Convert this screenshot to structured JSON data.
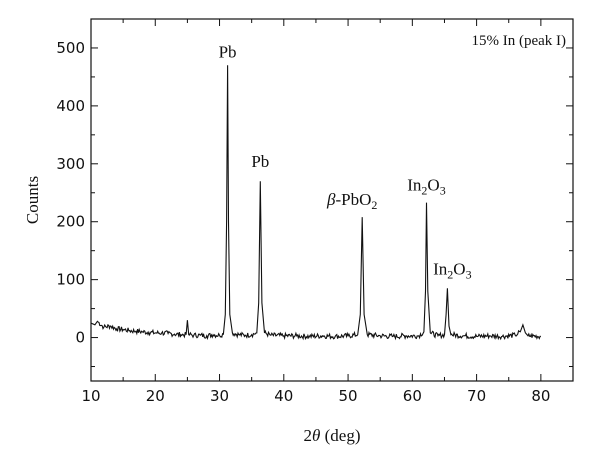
{
  "chart_data": {
    "type": "line",
    "corner_label": "15% In (peak I)",
    "xlabel": {
      "pre": "2",
      "symbol": "θ",
      "post": " (deg)"
    },
    "ylabel": "Counts",
    "xlim": [
      10,
      85
    ],
    "ylim": [
      -75,
      550
    ],
    "xticks": [
      10,
      20,
      30,
      40,
      50,
      60,
      70,
      80
    ],
    "yticks": [
      0,
      100,
      200,
      300,
      400,
      500
    ],
    "grid": false,
    "series": [
      {
        "color": "#111111",
        "points": [
          [
            10,
            25
          ],
          [
            10.6,
            22
          ],
          [
            11,
            28
          ],
          [
            12,
            18
          ],
          [
            13,
            20
          ],
          [
            14,
            15
          ],
          [
            15,
            14
          ],
          [
            16,
            12
          ],
          [
            17,
            11
          ],
          [
            18,
            10
          ],
          [
            19,
            9
          ],
          [
            20,
            8
          ],
          [
            21,
            8
          ],
          [
            22,
            7
          ],
          [
            23,
            6
          ],
          [
            24,
            5
          ],
          [
            24.8,
            5
          ],
          [
            25.0,
            30
          ],
          [
            25.2,
            5
          ],
          [
            26,
            4
          ],
          [
            27,
            4
          ],
          [
            28,
            3
          ],
          [
            29,
            5
          ],
          [
            30,
            4
          ],
          [
            30.6,
            6
          ],
          [
            30.9,
            40
          ],
          [
            31.1,
            200
          ],
          [
            31.25,
            470
          ],
          [
            31.4,
            200
          ],
          [
            31.6,
            40
          ],
          [
            32,
            8
          ],
          [
            33,
            5
          ],
          [
            34,
            4
          ],
          [
            35,
            5
          ],
          [
            35.8,
            8
          ],
          [
            36.1,
            60
          ],
          [
            36.35,
            270
          ],
          [
            36.6,
            60
          ],
          [
            37,
            8
          ],
          [
            38,
            4
          ],
          [
            40,
            3
          ],
          [
            42,
            3
          ],
          [
            44,
            2
          ],
          [
            46,
            3
          ],
          [
            48,
            2
          ],
          [
            50,
            3
          ],
          [
            51.5,
            5
          ],
          [
            51.9,
            40
          ],
          [
            52.2,
            208
          ],
          [
            52.5,
            40
          ],
          [
            53,
            5
          ],
          [
            55,
            3
          ],
          [
            57,
            2
          ],
          [
            59,
            3
          ],
          [
            61,
            3
          ],
          [
            61.8,
            10
          ],
          [
            62.05,
            80
          ],
          [
            62.2,
            233
          ],
          [
            62.4,
            80
          ],
          [
            62.8,
            8
          ],
          [
            64,
            3
          ],
          [
            65,
            5
          ],
          [
            65.25,
            40
          ],
          [
            65.45,
            85
          ],
          [
            65.7,
            20
          ],
          [
            66,
            5
          ],
          [
            68,
            3
          ],
          [
            70,
            2
          ],
          [
            72,
            3
          ],
          [
            74,
            2
          ],
          [
            76,
            4
          ],
          [
            76.8,
            10
          ],
          [
            77.2,
            22
          ],
          [
            77.6,
            8
          ],
          [
            78,
            3
          ],
          [
            80,
            2
          ]
        ]
      }
    ],
    "annotations": [
      {
        "label": "Pb",
        "x": 31.25,
        "y": 470
      },
      {
        "label": "Pb",
        "x": 36.35,
        "y": 270
      },
      {
        "label": "β-PbO2",
        "x": 52.2,
        "y": 208
      },
      {
        "label": "In2O3",
        "x": 62.2,
        "y": 233
      },
      {
        "label": "In2O3",
        "x": 65.45,
        "y": 85
      }
    ]
  }
}
